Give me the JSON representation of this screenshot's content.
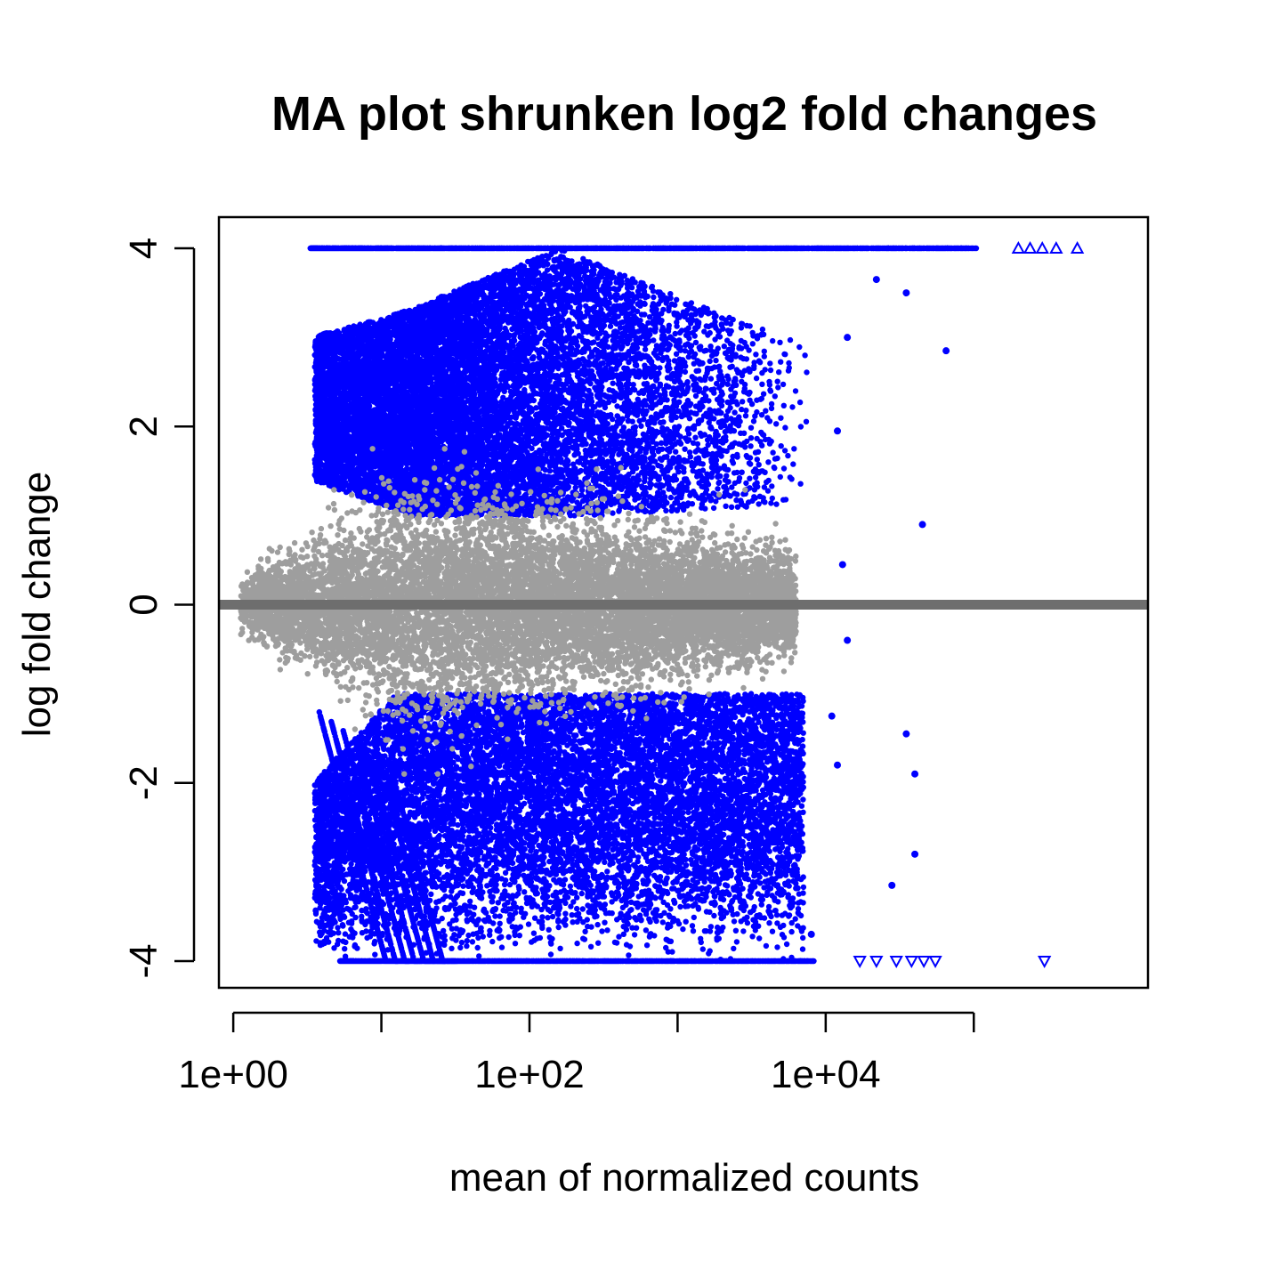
{
  "chart_data": {
    "type": "scatter",
    "title": "MA plot shrunken log2 fold changes",
    "xlabel": "mean of normalized counts",
    "ylabel": "log fold change",
    "x_scale": "log10",
    "xlim": [
      0.8,
      1500000
    ],
    "ylim": [
      -4.3,
      4.35
    ],
    "x_ticks": [
      1,
      10,
      100,
      1000,
      10000,
      100000
    ],
    "x_tick_labels": [
      "1e+00",
      "",
      "1e+02",
      "",
      "1e+04",
      ""
    ],
    "y_ticks": [
      -4,
      -2,
      0,
      2,
      4
    ],
    "y_tick_labels": [
      "-4",
      "-2",
      "0",
      "2",
      "4"
    ],
    "y_clip": [
      -4,
      4
    ],
    "reference_line": {
      "y": 0,
      "color": "#6e6e6e"
    },
    "grid": false,
    "colors": {
      "significant": "#0000ff",
      "not_significant": "#9e9e9e",
      "reference_line": "#6e6e6e"
    },
    "series": [
      {
        "key": "not_significant",
        "color": "#9e9e9e",
        "note_regions": [
          {
            "x_range": [
              1.2,
              3
            ],
            "y_spread": [
              -0.9,
              0.9
            ]
          },
          {
            "x_range": [
              3,
              10
            ],
            "y_spread": [
              -1.9,
              1.8
            ]
          },
          {
            "x_range": [
              10,
              100
            ],
            "y_spread": [
              -1.8,
              1.5
            ]
          },
          {
            "x_range": [
              100,
              1000
            ],
            "y_spread": [
              -1.2,
              1.0
            ]
          },
          {
            "x_range": [
              1000,
              10000
            ],
            "y_spread": [
              -0.9,
              0.8
            ]
          }
        ]
      },
      {
        "key": "significant_up",
        "color": "#0000ff",
        "cluster": {
          "x_center": 200,
          "y_range": [
            1.0,
            4.0
          ]
        }
      },
      {
        "key": "significant_down",
        "color": "#0000ff",
        "cluster": {
          "x_center": 300,
          "y_range": [
            -4.0,
            -1.0
          ]
        }
      },
      {
        "key": "clipped_up_triangles",
        "color": "#0000ff",
        "points": [
          {
            "x": 200000,
            "y": 4
          },
          {
            "x": 240000,
            "y": 4
          },
          {
            "x": 290000,
            "y": 4
          },
          {
            "x": 360000,
            "y": 4
          },
          {
            "x": 500000,
            "y": 4
          }
        ]
      },
      {
        "key": "clipped_down_triangles",
        "color": "#0000ff",
        "points": [
          {
            "x": 17000,
            "y": -4
          },
          {
            "x": 22000,
            "y": -4
          },
          {
            "x": 30000,
            "y": -4
          },
          {
            "x": 38000,
            "y": -4
          },
          {
            "x": 46000,
            "y": -4
          },
          {
            "x": 55000,
            "y": -4
          },
          {
            "x": 300000,
            "y": -4
          }
        ]
      },
      {
        "key": "outliers",
        "color": "#0000ff",
        "points": [
          {
            "x": 65000,
            "y": 2.85
          },
          {
            "x": 14000,
            "y": 3.0
          },
          {
            "x": 22000,
            "y": 3.65
          },
          {
            "x": 35000,
            "y": 3.5
          },
          {
            "x": 12000,
            "y": 1.95
          },
          {
            "x": 13000,
            "y": 0.45
          },
          {
            "x": 45000,
            "y": 0.9
          },
          {
            "x": 12000,
            "y": -1.8
          },
          {
            "x": 35000,
            "y": -1.45
          },
          {
            "x": 40000,
            "y": -1.9
          },
          {
            "x": 40000,
            "y": -2.8
          },
          {
            "x": 28000,
            "y": -3.15
          },
          {
            "x": 8000,
            "y": -3.7
          },
          {
            "x": 11000,
            "y": -1.25
          },
          {
            "x": 14000,
            "y": -0.4
          }
        ]
      }
    ]
  }
}
